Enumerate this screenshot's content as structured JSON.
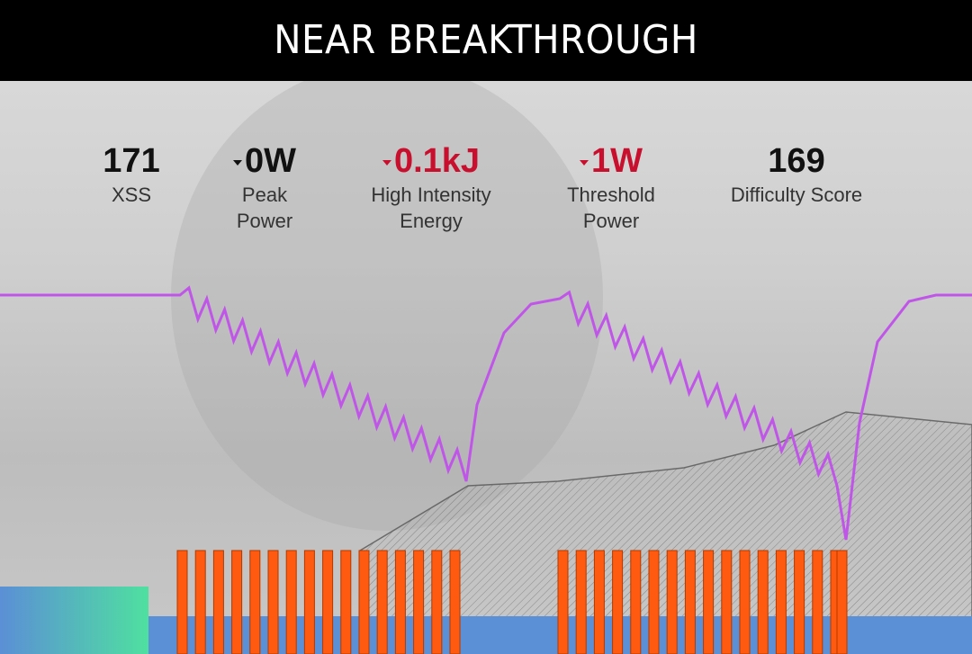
{
  "header": {
    "title": "NEAR BREAKTHROUGH"
  },
  "metrics": [
    {
      "value": "171",
      "label": [
        "XSS"
      ]
    },
    {
      "value": "0W",
      "label": [
        "Peak",
        "Power"
      ]
    },
    {
      "value": "0.1kJ",
      "label": [
        "High Intensity",
        "Energy"
      ]
    },
    {
      "value": "1W",
      "label": [
        "Threshold",
        "Power"
      ]
    },
    {
      "value": "169",
      "label": [
        "Difficulty Score"
      ]
    }
  ]
}
